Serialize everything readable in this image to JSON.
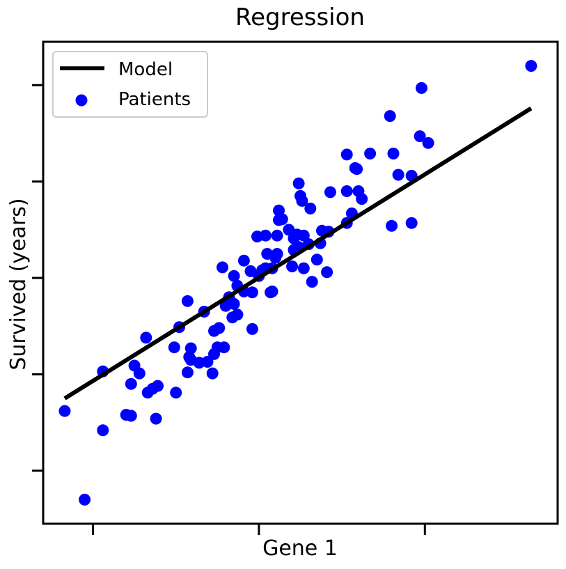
{
  "chart_data": {
    "type": "scatter",
    "title": "Regression",
    "xlabel": "Gene 1",
    "ylabel": "Survived (years)",
    "xlim": [
      -1.3,
      1.8
    ],
    "ylim": [
      -2.55,
      2.45
    ],
    "x_ticks": [
      -1,
      0,
      1
    ],
    "y_ticks": [
      -2,
      -1,
      0,
      1,
      2
    ],
    "tick_labels_shown": false,
    "grid": false,
    "legend": {
      "position": "top-left",
      "entries": [
        {
          "name": "Model",
          "kind": "line",
          "color": "#000000"
        },
        {
          "name": "Patients",
          "kind": "marker",
          "color": "#0000ff"
        }
      ]
    },
    "series": [
      {
        "name": "Patients",
        "type": "scatter",
        "color": "#0000ff",
        "points": [
          [
            -1.17,
            -1.38
          ],
          [
            -0.94,
            -1.58
          ],
          [
            -0.94,
            -0.97
          ],
          [
            -1.05,
            -2.3
          ],
          [
            -0.77,
            -1.43
          ],
          [
            -0.8,
            -1.42
          ],
          [
            -0.77,
            -1.1
          ],
          [
            -0.75,
            -0.91
          ],
          [
            -0.72,
            -0.99
          ],
          [
            -0.68,
            -0.62
          ],
          [
            -0.67,
            -1.19
          ],
          [
            -0.62,
            -1.46
          ],
          [
            -0.61,
            -1.12
          ],
          [
            -0.64,
            -1.15
          ],
          [
            -0.5,
            -1.19
          ],
          [
            -0.51,
            -0.72
          ],
          [
            -0.48,
            -0.51
          ],
          [
            -0.43,
            -0.98
          ],
          [
            -0.43,
            -0.24
          ],
          [
            -0.42,
            -0.82
          ],
          [
            -0.41,
            -0.85
          ],
          [
            -0.41,
            -0.73
          ],
          [
            -0.36,
            -0.88
          ],
          [
            -0.33,
            -0.35
          ],
          [
            -0.31,
            -0.87
          ],
          [
            -0.28,
            -0.99
          ],
          [
            -0.27,
            -0.79
          ],
          [
            -0.27,
            -0.55
          ],
          [
            -0.24,
            -0.52
          ],
          [
            -0.25,
            -0.72
          ],
          [
            -0.22,
            0.11
          ],
          [
            -0.21,
            -0.72
          ],
          [
            -0.2,
            -0.29
          ],
          [
            -0.18,
            -0.2
          ],
          [
            -0.17,
            -0.26
          ],
          [
            -0.16,
            -0.41
          ],
          [
            -0.15,
            -0.27
          ],
          [
            -0.15,
            0.02
          ],
          [
            -0.13,
            -0.38
          ],
          [
            -0.13,
            -0.08
          ],
          [
            -0.09,
            -0.14
          ],
          [
            -0.09,
            0.18
          ],
          [
            -0.05,
            0.07
          ],
          [
            -0.04,
            -0.53
          ],
          [
            -0.04,
            -0.15
          ],
          [
            -0.01,
            0.43
          ],
          [
            0.0,
            0.02
          ],
          [
            0.02,
            0.08
          ],
          [
            0.04,
            0.44
          ],
          [
            0.04,
            0.1
          ],
          [
            0.05,
            0.25
          ],
          [
            0.07,
            -0.15
          ],
          [
            0.08,
            -0.14
          ],
          [
            0.08,
            0.1
          ],
          [
            0.1,
            0.21
          ],
          [
            0.11,
            0.44
          ],
          [
            0.11,
            0.25
          ],
          [
            0.12,
            0.7
          ],
          [
            0.12,
            0.6
          ],
          [
            0.14,
            0.61
          ],
          [
            0.18,
            0.5
          ],
          [
            0.2,
            0.12
          ],
          [
            0.21,
            0.41
          ],
          [
            0.21,
            0.29
          ],
          [
            0.23,
            0.45
          ],
          [
            0.24,
            0.32
          ],
          [
            0.24,
            0.98
          ],
          [
            0.25,
            0.85
          ],
          [
            0.26,
            0.8
          ],
          [
            0.27,
            0.1
          ],
          [
            0.27,
            0.44
          ],
          [
            0.3,
            0.35
          ],
          [
            0.31,
            0.72
          ],
          [
            0.32,
            -0.04
          ],
          [
            0.35,
            0.19
          ],
          [
            0.37,
            0.36
          ],
          [
            0.38,
            0.49
          ],
          [
            0.41,
            0.06
          ],
          [
            0.42,
            0.48
          ],
          [
            0.43,
            0.89
          ],
          [
            0.53,
            0.57
          ],
          [
            0.53,
            0.9
          ],
          [
            0.53,
            1.28
          ],
          [
            0.56,
            0.67
          ],
          [
            0.58,
            1.14
          ],
          [
            0.59,
            1.13
          ],
          [
            0.6,
            0.9
          ],
          [
            0.62,
            0.82
          ],
          [
            0.67,
            1.29
          ],
          [
            0.79,
            1.68
          ],
          [
            0.8,
            0.54
          ],
          [
            0.81,
            1.29
          ],
          [
            0.84,
            1.07
          ],
          [
            0.92,
            0.57
          ],
          [
            0.92,
            1.06
          ],
          [
            0.97,
            1.47
          ],
          [
            0.98,
            1.97
          ],
          [
            1.02,
            1.4
          ],
          [
            1.64,
            2.2
          ]
        ]
      },
      {
        "name": "Model",
        "type": "line",
        "color": "#000000",
        "points": [
          [
            -1.17,
            -1.25
          ],
          [
            1.64,
            1.76
          ]
        ]
      }
    ]
  }
}
